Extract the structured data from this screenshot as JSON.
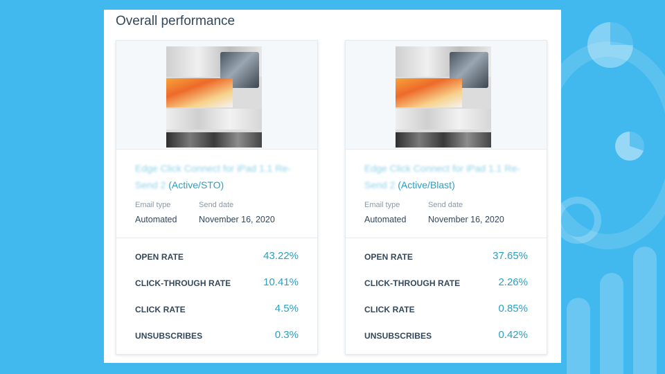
{
  "panel": {
    "title": "Overall performance"
  },
  "cards": [
    {
      "name_blurred": "Edge Click Connect for iPad 1.1 Re-Send 2",
      "name_suffix": "(Active/STO)",
      "meta": {
        "email_type_label": "Email type",
        "email_type_value": "Automated",
        "send_date_label": "Send date",
        "send_date_value": "November 16, 2020"
      },
      "metrics": [
        {
          "label": "OPEN RATE",
          "value": "43.22%"
        },
        {
          "label": "CLICK-THROUGH RATE",
          "value": "10.41%"
        },
        {
          "label": "CLICK RATE",
          "value": "4.5%"
        },
        {
          "label": "UNSUBSCRIBES",
          "value": "0.3%"
        }
      ]
    },
    {
      "name_blurred": "Edge Click Connect for iPad 1.1 Re-Send 2",
      "name_suffix": "(Active/Blast)",
      "meta": {
        "email_type_label": "Email type",
        "email_type_value": "Automated",
        "send_date_label": "Send date",
        "send_date_value": "November 16, 2020"
      },
      "metrics": [
        {
          "label": "OPEN RATE",
          "value": "37.65%"
        },
        {
          "label": "CLICK-THROUGH RATE",
          "value": "2.26%"
        },
        {
          "label": "CLICK RATE",
          "value": "0.85%"
        },
        {
          "label": "UNSUBSCRIBES",
          "value": "0.42%"
        }
      ]
    }
  ],
  "colors": {
    "background": "#41b8ee",
    "accent": "#2a9fc3",
    "text": "#33475b"
  }
}
